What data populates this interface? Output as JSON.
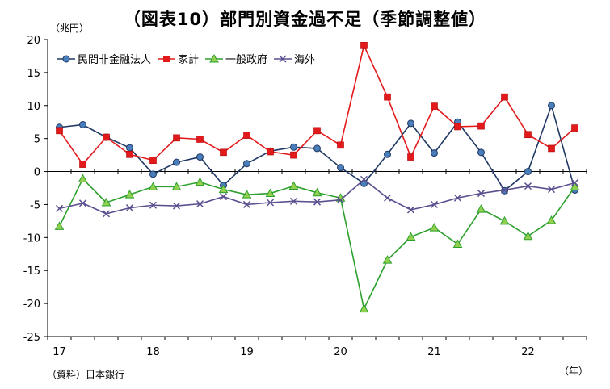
{
  "chart_data": {
    "type": "line",
    "title": "（図表10）部門別資金過不足（季節調整値）",
    "ylabel": "（兆円）",
    "xlabel": "（年）",
    "source": "（資料）日本銀行",
    "ylim": [
      -25,
      20
    ],
    "yticks": [
      20,
      15,
      10,
      5,
      0,
      -5,
      -10,
      -15,
      -20,
      -25
    ],
    "year_labels": [
      "17",
      "18",
      "19",
      "20",
      "21",
      "22"
    ],
    "legend_position": "top-left",
    "grid": false,
    "series": [
      {
        "name": "民間非金融法人",
        "color": "#1f3864",
        "marker": "circle",
        "marker_color": "#4a7ebb",
        "values": [
          6.7,
          7.1,
          5.2,
          3.6,
          -0.4,
          1.4,
          2.2,
          -2.1,
          1.2,
          3.1,
          3.7,
          3.5,
          0.6,
          -1.8,
          2.6,
          7.3,
          2.8,
          7.5,
          2.9,
          -2.9,
          0.0,
          10.0,
          -2.8
        ]
      },
      {
        "name": "家計",
        "color": "#e31a1c",
        "marker": "square",
        "marker_color": "#e31a1c",
        "values": [
          6.2,
          1.1,
          5.2,
          2.6,
          1.7,
          5.1,
          4.9,
          2.9,
          5.5,
          3.0,
          2.5,
          6.2,
          4.0,
          19.1,
          11.3,
          2.2,
          9.9,
          6.8,
          6.9,
          11.3,
          5.6,
          3.5,
          6.6
        ]
      },
      {
        "name": "一般政府",
        "color": "#2ca02c",
        "marker": "triangle",
        "marker_color": "#92d050",
        "values": [
          -8.3,
          -1.1,
          -4.7,
          -3.5,
          -2.3,
          -2.3,
          -1.6,
          -2.7,
          -3.5,
          -3.3,
          -2.2,
          -3.2,
          -4.0,
          -20.8,
          -13.4,
          -9.9,
          -8.5,
          -11.0,
          -5.7,
          -7.5,
          -9.8,
          -7.4,
          -2.3
        ]
      },
      {
        "name": "海外",
        "color": "#5b4f8f",
        "marker": "x",
        "marker_color": "#5b4f8f",
        "values": [
          -5.6,
          -4.8,
          -6.4,
          -5.5,
          -5.1,
          -5.2,
          -4.9,
          -3.8,
          -5.0,
          -4.7,
          -4.5,
          -4.6,
          -4.3,
          -1.2,
          -4.0,
          -5.8,
          -5.0,
          -4.0,
          -3.3,
          -2.8,
          -2.2,
          -2.7,
          -1.7
        ]
      }
    ]
  }
}
